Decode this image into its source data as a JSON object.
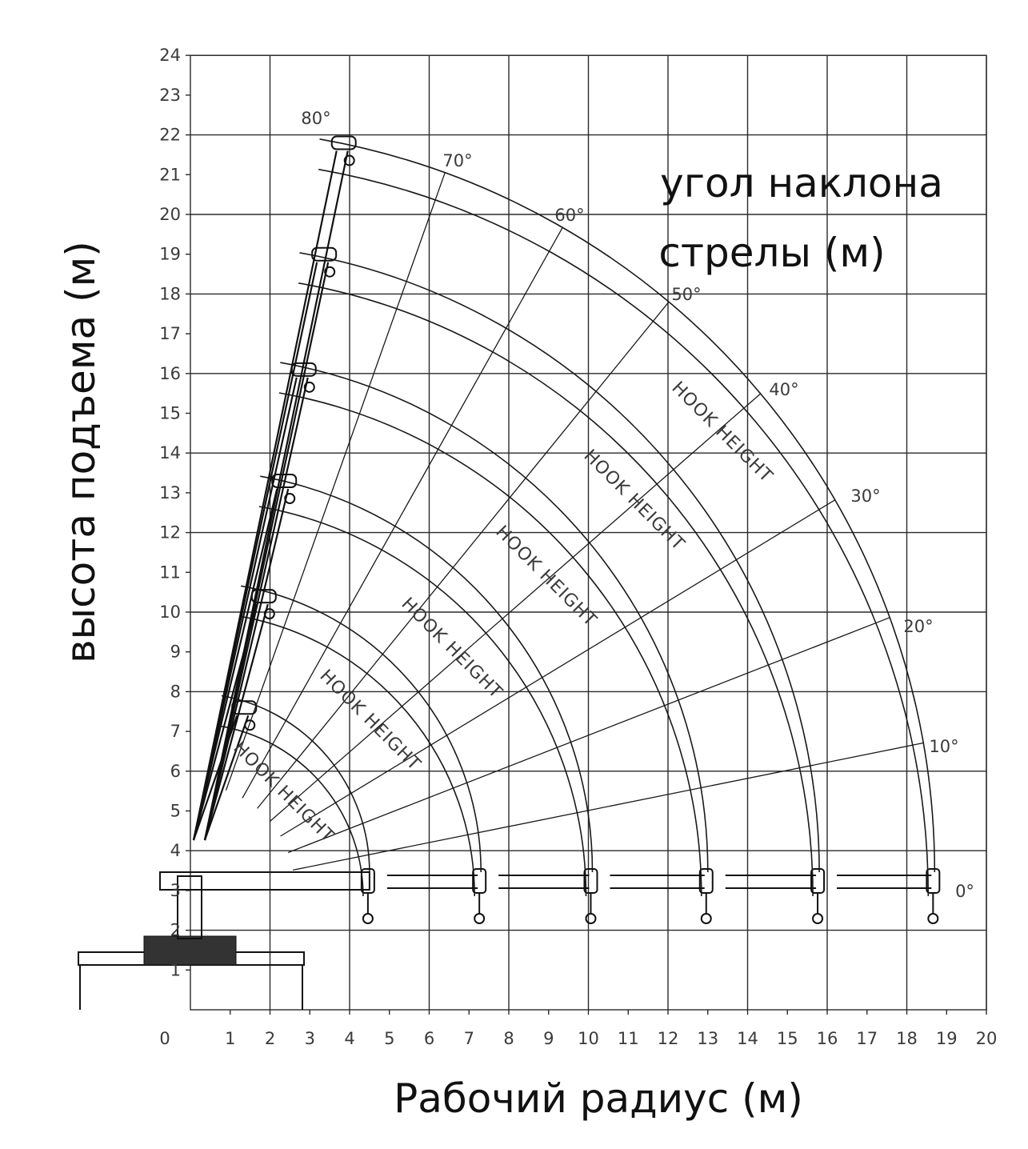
{
  "diagram": {
    "y_axis_label": "высота подъема (м)",
    "x_axis_label": "Рабочий радиус (м)",
    "boom_angle_label_line1": "угол наклона",
    "boom_angle_label_line2": "стрелы (м)",
    "hook_height_label": "HOOK HEIGHT",
    "x_ticks": [
      "0",
      "1",
      "2",
      "3",
      "4",
      "5",
      "6",
      "7",
      "8",
      "9",
      "10",
      "11",
      "12",
      "13",
      "14",
      "15",
      "16",
      "17",
      "18",
      "19",
      "20"
    ],
    "y_ticks": [
      "1",
      "2",
      "3",
      "4",
      "5",
      "6",
      "7",
      "8",
      "9",
      "10",
      "11",
      "12",
      "13",
      "14",
      "15",
      "16",
      "17",
      "18",
      "19",
      "20",
      "21",
      "22",
      "23",
      "24"
    ],
    "angle_labels": [
      "80°",
      "70°",
      "60°",
      "50°",
      "40°",
      "30°",
      "20°",
      "10°",
      "0°"
    ],
    "boom_tip_radius_m": [
      4.5,
      7.3,
      10.1,
      13.0,
      15.8,
      18.7
    ],
    "boom_tip_height_m_at_80deg": [
      7.6,
      10.4,
      13.3,
      16.1,
      19.0,
      21.8
    ]
  }
}
